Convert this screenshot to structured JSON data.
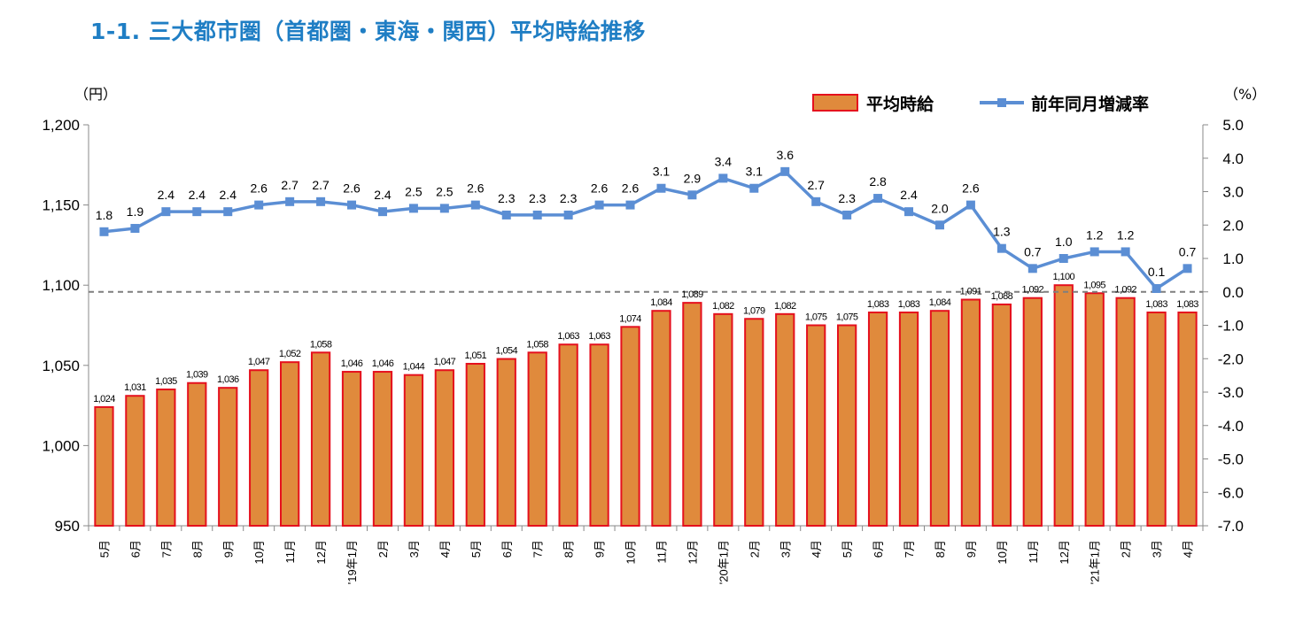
{
  "header": {
    "title": "1-1.  三大都市圏（首都圏・東海・関西）平均時給推移"
  },
  "chart_data": {
    "type": "bar+line",
    "left_axis": {
      "unit": "（円）",
      "ylim": [
        950,
        1200
      ],
      "ticks": [
        "1,200",
        "1,150",
        "1,100",
        "1,050",
        "1,000",
        "950"
      ]
    },
    "right_axis": {
      "unit": "（%）",
      "ylim": [
        -7.0,
        5.0
      ],
      "ticks": [
        "5.0",
        "4.0",
        "3.0",
        "2.0",
        "1.0",
        "0.0",
        "-1.0",
        "-2.0",
        "-3.0",
        "-4.0",
        "-5.0",
        "-6.0",
        "-7.0"
      ]
    },
    "categories": [
      "5月",
      "6月",
      "7月",
      "8月",
      "9月",
      "10月",
      "11月",
      "12月",
      "'19年1月",
      "2月",
      "3月",
      "4月",
      "5月",
      "6月",
      "7月",
      "8月",
      "9月",
      "10月",
      "11月",
      "12月",
      "'20年1月",
      "2月",
      "3月",
      "4月",
      "5月",
      "6月",
      "7月",
      "8月",
      "9月",
      "10月",
      "11月",
      "12月",
      "'21年1月",
      "2月",
      "3月",
      "4月"
    ],
    "series": [
      {
        "name": "平均時給",
        "kind": "bar",
        "axis": "left",
        "values": [
          1024,
          1031,
          1035,
          1039,
          1036,
          1047,
          1052,
          1058,
          1046,
          1046,
          1044,
          1047,
          1051,
          1054,
          1058,
          1063,
          1063,
          1074,
          1084,
          1089,
          1082,
          1079,
          1082,
          1075,
          1075,
          1083,
          1083,
          1084,
          1091,
          1088,
          1092,
          1100,
          1095,
          1092,
          1083,
          1083
        ],
        "labels": [
          "1,024",
          "1,031",
          "1,035",
          "1,039",
          "1,036",
          "1,047",
          "1,052",
          "1,058",
          "1,046",
          "1,046",
          "1,044",
          "1,047",
          "1,051",
          "1,054",
          "1,058",
          "1,063",
          "1,063",
          "1,074",
          "1,084",
          "1,089",
          "1,082",
          "1,079",
          "1,082",
          "1,075",
          "1,075",
          "1,083",
          "1,083",
          "1,084",
          "1,091",
          "1,088",
          "1,092",
          "1,100",
          "1,095",
          "1,092",
          "1,083",
          "1,083"
        ]
      },
      {
        "name": "前年同月増減率",
        "kind": "line",
        "axis": "right",
        "values": [
          1.8,
          1.9,
          2.4,
          2.4,
          2.4,
          2.6,
          2.7,
          2.7,
          2.6,
          2.4,
          2.5,
          2.5,
          2.6,
          2.3,
          2.3,
          2.3,
          2.6,
          2.6,
          3.1,
          2.9,
          3.4,
          3.1,
          3.6,
          2.7,
          2.3,
          2.8,
          2.4,
          2.0,
          2.6,
          1.3,
          0.7,
          1.0,
          1.2,
          1.2,
          0.1,
          0.7
        ],
        "labels": [
          "1.8",
          "1.9",
          "2.4",
          "2.4",
          "2.4",
          "2.6",
          "2.7",
          "2.7",
          "2.6",
          "2.4",
          "2.5",
          "2.5",
          "2.6",
          "2.3",
          "2.3",
          "2.3",
          "2.6",
          "2.6",
          "3.1",
          "2.9",
          "3.4",
          "3.1",
          "3.6",
          "2.7",
          "2.3",
          "2.8",
          "2.4",
          "2.0",
          "2.6",
          "1.3",
          "0.7",
          "1.0",
          "1.2",
          "1.2",
          "0.1",
          "0.7"
        ]
      }
    ],
    "colors": {
      "bar_fill": "#e08a3c",
      "bar_stroke": "#e5101d",
      "line": "#5b8ed4",
      "title": "#1f7ec4",
      "zero_line": "#7f7f7f"
    },
    "legend": {
      "placement": "top-right"
    },
    "grid": false
  }
}
